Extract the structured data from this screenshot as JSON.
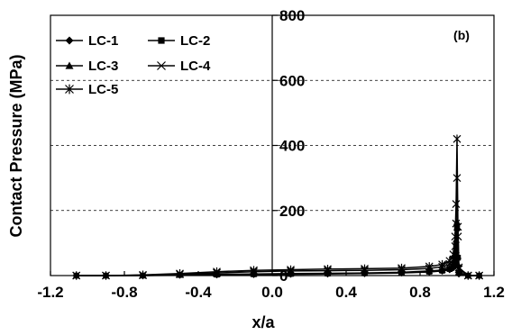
{
  "chart_data": {
    "type": "line",
    "panel_label": "(b)",
    "xlabel": "x/a",
    "ylabel": "Contact Pressure (MPa)",
    "xlim": [
      -1.2,
      1.2
    ],
    "ylim": [
      0,
      800
    ],
    "xticks": [
      "-1.2",
      "-0.8",
      "-0.4",
      "0.0",
      "0.4",
      "0.8",
      "1.2"
    ],
    "yticks": [
      "0",
      "200",
      "400",
      "600",
      "800"
    ],
    "grid": "horizontal dashed",
    "legend_position": "top-left",
    "series": [
      {
        "name": "LC-1",
        "marker": "diamond",
        "x": [
          -1.06,
          -0.9,
          -0.7,
          -0.5,
          -0.3,
          -0.1,
          0.1,
          0.3,
          0.5,
          0.7,
          0.85,
          0.92,
          0.96,
          0.98,
          0.99,
          0.995,
          1.0,
          1.005,
          1.01,
          1.06,
          1.12
        ],
        "y": [
          0,
          0,
          0,
          1,
          2,
          3,
          4,
          5,
          6,
          8,
          11,
          14,
          18,
          24,
          40,
          70,
          140,
          30,
          5,
          0,
          0
        ]
      },
      {
        "name": "LC-2",
        "marker": "square",
        "x": [
          -1.06,
          -0.9,
          -0.7,
          -0.5,
          -0.3,
          -0.1,
          0.1,
          0.3,
          0.5,
          0.7,
          0.85,
          0.92,
          0.96,
          0.98,
          0.99,
          0.995,
          1.0,
          1.005,
          1.01,
          1.06,
          1.12
        ],
        "y": [
          0,
          0,
          0,
          2,
          3,
          4,
          5,
          6,
          7,
          9,
          12,
          15,
          20,
          28,
          50,
          90,
          150,
          55,
          8,
          0,
          0
        ]
      },
      {
        "name": "LC-3",
        "marker": "triangle",
        "x": [
          -1.06,
          -0.9,
          -0.7,
          -0.5,
          -0.3,
          -0.1,
          0.1,
          0.3,
          0.5,
          0.7,
          0.85,
          0.92,
          0.96,
          0.98,
          0.99,
          0.995,
          1.0,
          1.005,
          1.01,
          1.06,
          1.12
        ],
        "y": [
          0,
          0,
          1,
          2,
          4,
          5,
          6,
          7,
          8,
          10,
          14,
          17,
          23,
          32,
          60,
          110,
          165,
          60,
          10,
          0,
          0
        ]
      },
      {
        "name": "LC-4",
        "marker": "x",
        "x": [
          -1.06,
          -0.9,
          -0.7,
          -0.5,
          -0.3,
          -0.1,
          0.1,
          0.3,
          0.5,
          0.7,
          0.85,
          0.92,
          0.96,
          0.98,
          0.99,
          0.995,
          1.0,
          1.005,
          1.01,
          1.06,
          1.12
        ],
        "y": [
          0,
          0,
          1,
          4,
          8,
          12,
          14,
          15,
          16,
          18,
          22,
          27,
          35,
          50,
          90,
          160,
          300,
          120,
          20,
          0,
          0
        ]
      },
      {
        "name": "LC-5",
        "marker": "asterisk",
        "x": [
          -1.06,
          -0.9,
          -0.7,
          -0.5,
          -0.3,
          -0.1,
          0.1,
          0.3,
          0.5,
          0.7,
          0.85,
          0.92,
          0.96,
          0.98,
          0.99,
          0.995,
          1.0,
          1.005,
          1.01,
          1.06,
          1.12
        ],
        "y": [
          0,
          0,
          2,
          6,
          12,
          16,
          18,
          20,
          21,
          23,
          28,
          34,
          45,
          65,
          120,
          220,
          420,
          150,
          25,
          0,
          0
        ]
      }
    ]
  }
}
